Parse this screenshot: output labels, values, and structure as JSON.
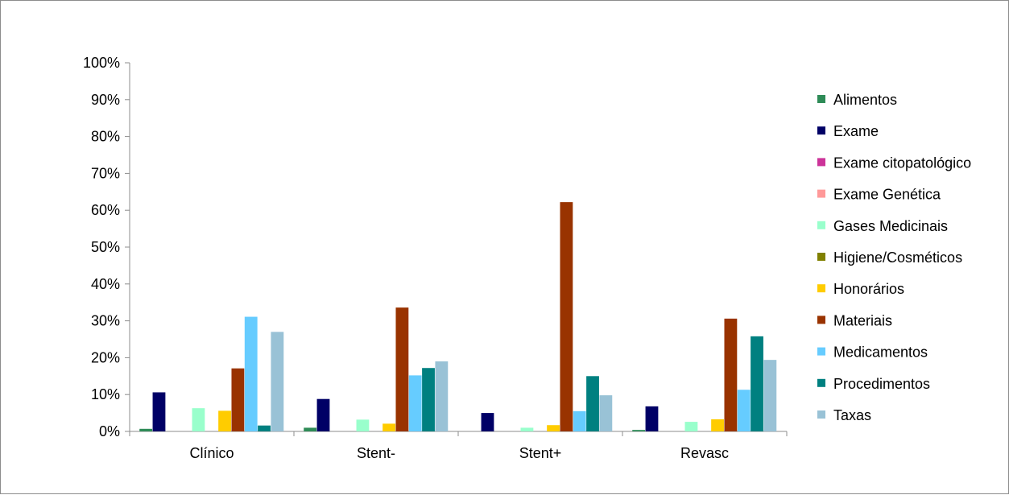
{
  "chart_data": {
    "type": "bar",
    "title": "",
    "xlabel": "",
    "ylabel": "",
    "ylim": [
      0,
      100
    ],
    "yticks": [
      "0%",
      "10%",
      "20%",
      "30%",
      "40%",
      "50%",
      "60%",
      "70%",
      "80%",
      "90%",
      "100%"
    ],
    "grid": false,
    "legend_position": "right",
    "categories": [
      "Clínico",
      "Stent-",
      "Stent+",
      "Revasc"
    ],
    "series": [
      {
        "name": "Alimentos",
        "color": "#2e8b57",
        "values": [
          0.7,
          1.0,
          0.0,
          0.4
        ]
      },
      {
        "name": "Exame",
        "color": "#000066",
        "values": [
          10.6,
          8.8,
          5.0,
          6.8
        ]
      },
      {
        "name": "Exame citopatológico",
        "color": "#cc3399",
        "values": [
          0.0,
          0.0,
          0.0,
          0.0
        ]
      },
      {
        "name": "Exame Genética",
        "color": "#ff9999",
        "values": [
          0.0,
          0.0,
          0.0,
          0.0
        ]
      },
      {
        "name": "Gases Medicinais",
        "color": "#99ffcc",
        "values": [
          6.3,
          3.2,
          1.0,
          2.6
        ]
      },
      {
        "name": "Higiene/Cosméticos",
        "color": "#808000",
        "values": [
          0.0,
          0.0,
          0.0,
          0.0
        ]
      },
      {
        "name": "Honorários",
        "color": "#ffcc00",
        "values": [
          5.6,
          2.1,
          1.7,
          3.3
        ]
      },
      {
        "name": "Materiais",
        "color": "#993300",
        "values": [
          17.1,
          33.6,
          62.2,
          30.6
        ]
      },
      {
        "name": "Medicamentos",
        "color": "#66ccff",
        "values": [
          31.1,
          15.2,
          5.5,
          11.3
        ]
      },
      {
        "name": "Procedimentos",
        "color": "#008080",
        "values": [
          1.6,
          17.2,
          15.0,
          25.8
        ]
      },
      {
        "name": "Taxas",
        "color": "#99c2d6",
        "values": [
          27.0,
          19.0,
          9.8,
          19.4
        ]
      }
    ]
  }
}
